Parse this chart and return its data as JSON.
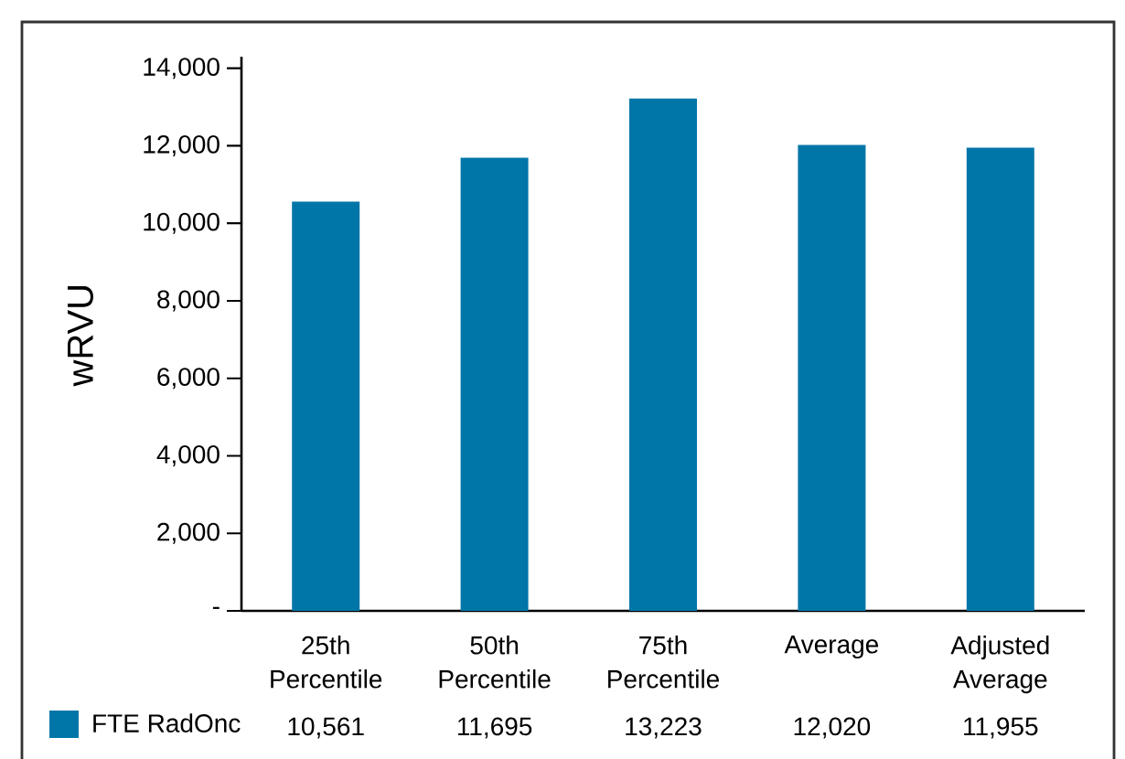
{
  "chart_data": {
    "type": "bar",
    "ylabel": "wRVU",
    "categories": [
      "25th Percentile",
      "50th Percentile",
      "75th Percentile",
      "Average",
      "Adjusted Average"
    ],
    "series": [
      {
        "name": "FTE RadOnc",
        "color": "#0076a8",
        "values": [
          10561,
          11695,
          13223,
          12020,
          11955
        ],
        "value_labels": [
          "10,561",
          "11,695",
          "13,223",
          "12,020",
          "11,955"
        ]
      }
    ],
    "ylim": [
      0,
      14300
    ],
    "yticks": [
      {
        "value": 0,
        "label": "-"
      },
      {
        "value": 2000,
        "label": "2,000"
      },
      {
        "value": 4000,
        "label": "4,000"
      },
      {
        "value": 6000,
        "label": "6,000"
      },
      {
        "value": 8000,
        "label": "8,000"
      },
      {
        "value": 10000,
        "label": "10,000"
      },
      {
        "value": 12000,
        "label": "12,000"
      },
      {
        "value": 14000,
        "label": "14,000"
      }
    ],
    "legend": "bottom"
  }
}
